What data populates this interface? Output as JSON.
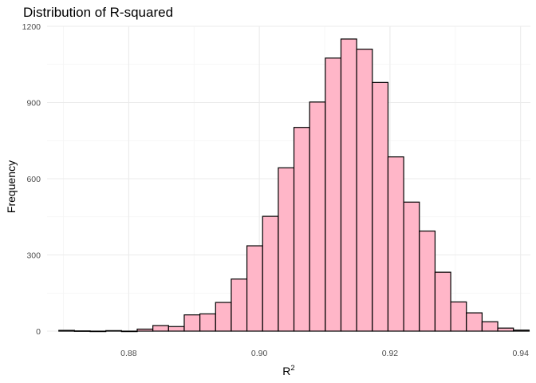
{
  "chart_data": {
    "type": "bar",
    "title": "Distribution of R-squared",
    "xlabel": "R",
    "xlabel_superscript": "2",
    "ylabel": "Frequency",
    "xlim": [
      0.8675,
      0.9415
    ],
    "ylim": [
      0,
      1200
    ],
    "x_ticks": [
      0.88,
      0.9,
      0.92,
      0.94
    ],
    "x_tick_labels": [
      "0.88",
      "0.90",
      "0.92",
      "0.94"
    ],
    "y_ticks": [
      0,
      300,
      600,
      900,
      1200
    ],
    "y_tick_labels": [
      "0",
      "300",
      "600",
      "900",
      "1200"
    ],
    "grid": true,
    "legend": "none",
    "bin_width": 0.0024,
    "bins": [
      {
        "x": 0.8705,
        "value": 3
      },
      {
        "x": 0.8729,
        "value": 1
      },
      {
        "x": 0.8753,
        "value": 0
      },
      {
        "x": 0.8777,
        "value": 2
      },
      {
        "x": 0.8801,
        "value": 0
      },
      {
        "x": 0.8825,
        "value": 8
      },
      {
        "x": 0.8849,
        "value": 22
      },
      {
        "x": 0.8873,
        "value": 18
      },
      {
        "x": 0.8897,
        "value": 64
      },
      {
        "x": 0.8921,
        "value": 68
      },
      {
        "x": 0.8945,
        "value": 113
      },
      {
        "x": 0.8969,
        "value": 205
      },
      {
        "x": 0.8993,
        "value": 336
      },
      {
        "x": 0.9017,
        "value": 452
      },
      {
        "x": 0.9041,
        "value": 643
      },
      {
        "x": 0.9065,
        "value": 802
      },
      {
        "x": 0.9089,
        "value": 902
      },
      {
        "x": 0.9113,
        "value": 1075
      },
      {
        "x": 0.9137,
        "value": 1150
      },
      {
        "x": 0.9161,
        "value": 1110
      },
      {
        "x": 0.9185,
        "value": 979
      },
      {
        "x": 0.9209,
        "value": 686
      },
      {
        "x": 0.9233,
        "value": 508
      },
      {
        "x": 0.9257,
        "value": 394
      },
      {
        "x": 0.9281,
        "value": 232
      },
      {
        "x": 0.9305,
        "value": 115
      },
      {
        "x": 0.9329,
        "value": 72
      },
      {
        "x": 0.9353,
        "value": 37
      },
      {
        "x": 0.9377,
        "value": 12
      },
      {
        "x": 0.9401,
        "value": 4
      }
    ],
    "colors": {
      "bar_fill": "#ffb6c8",
      "bar_stroke": "#000000",
      "grid": "#ebebeb",
      "tick_text": "#4d4d4d"
    }
  }
}
